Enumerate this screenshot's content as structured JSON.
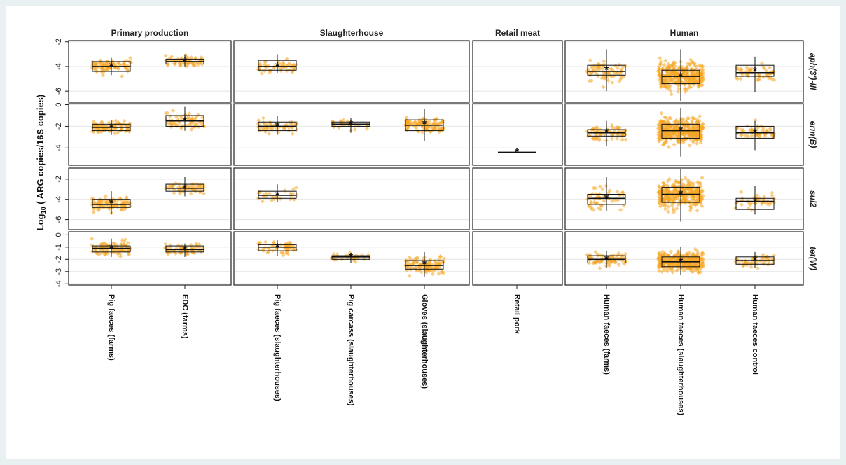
{
  "chart_data": {
    "type": "box",
    "facets": [
      "Primary production",
      "Slaughterhouse",
      "Retail meat",
      "Human"
    ],
    "genes": [
      {
        "label": "aph(3')-III",
        "ticks": [
          -2,
          -4,
          -6
        ],
        "tick_labels": [
          "-2",
          "-4",
          "-6"
        ],
        "ylim": [
          -1.9,
          -6.9
        ]
      },
      {
        "label": "erm(B)",
        "ticks": [
          0,
          -2,
          -4
        ],
        "tick_labels": [
          "0",
          "-2",
          "-4"
        ],
        "ylim": [
          0.1,
          -5.6
        ]
      },
      {
        "label": "sul2",
        "ticks": [
          -2,
          -4,
          -6
        ],
        "tick_labels": [
          "-2",
          "-4",
          "-6"
        ],
        "ylim": [
          -0.9,
          -7.0
        ]
      },
      {
        "label": "tet(W)",
        "ticks": [
          0,
          -1,
          -2,
          -3,
          -4
        ],
        "tick_labels": [
          "0",
          "-1",
          "-2",
          "-3",
          "-4"
        ],
        "ylim": [
          0.25,
          -4.1
        ]
      }
    ],
    "categories": [
      {
        "label": "Pig faeces (farms)",
        "facet": 0
      },
      {
        "label": "EDC (farms)",
        "facet": 0
      },
      {
        "label": "Pig faeces (slaughterhouses)",
        "facet": 1
      },
      {
        "label": "Pig carcass (slaughterhouses)",
        "facet": 1
      },
      {
        "label": "Gloves (slaughterhouses)",
        "facet": 1
      },
      {
        "label": "Retail pork",
        "facet": 2
      },
      {
        "label": "Human faeces (farms)",
        "facet": 3
      },
      {
        "label": "Human faeces (slaughterhouses)",
        "facet": 3
      },
      {
        "label": "Human faeces control",
        "facet": 3
      }
    ],
    "boxes": [
      {
        "gene": 0,
        "cat": 0,
        "q1": -4.4,
        "median": -4.0,
        "q3": -3.6,
        "mean": -4.0,
        "whisker_low": -4.7,
        "whisker_high": -3.3,
        "n": 90,
        "spread": 0.55
      },
      {
        "gene": 0,
        "cat": 1,
        "q1": -3.8,
        "median": -3.6,
        "q3": -3.4,
        "mean": -3.6,
        "whisker_low": -4.0,
        "whisker_high": -3.0,
        "n": 60,
        "spread": 0.4
      },
      {
        "gene": 0,
        "cat": 2,
        "q1": -4.3,
        "median": -4.0,
        "q3": -3.5,
        "mean": -4.0,
        "whisker_low": -4.5,
        "whisker_high": -3.0,
        "n": 50,
        "spread": 0.45
      },
      {
        "gene": 0,
        "cat": 6,
        "q1": -4.7,
        "median": -4.4,
        "q3": -3.9,
        "mean": -4.3,
        "whisker_low": -6.0,
        "whisker_high": -2.6,
        "n": 70,
        "spread": 0.8
      },
      {
        "gene": 0,
        "cat": 7,
        "q1": -5.4,
        "median": -4.8,
        "q3": -4.3,
        "mean": -4.8,
        "whisker_low": -6.8,
        "whisker_high": -2.6,
        "n": 340,
        "spread": 1.0
      },
      {
        "gene": 0,
        "cat": 8,
        "q1": -4.8,
        "median": -4.5,
        "q3": -3.9,
        "mean": -4.4,
        "whisker_low": -6.1,
        "whisker_high": -3.2,
        "n": 50,
        "spread": 0.6
      },
      {
        "gene": 1,
        "cat": 0,
        "q1": -2.4,
        "median": -2.1,
        "q3": -1.8,
        "mean": -2.1,
        "whisker_low": -2.8,
        "whisker_high": -1.4,
        "n": 90,
        "spread": 0.5
      },
      {
        "gene": 1,
        "cat": 1,
        "q1": -2.0,
        "median": -1.5,
        "q3": -1.0,
        "mean": -1.5,
        "whisker_low": -2.4,
        "whisker_high": -0.2,
        "n": 60,
        "spread": 0.6
      },
      {
        "gene": 1,
        "cat": 2,
        "q1": -2.4,
        "median": -2.0,
        "q3": -1.6,
        "mean": -2.0,
        "whisker_low": -2.8,
        "whisker_high": -1.0,
        "n": 50,
        "spread": 0.5
      },
      {
        "gene": 1,
        "cat": 3,
        "q1": -2.0,
        "median": -1.8,
        "q3": -1.6,
        "mean": -1.8,
        "whisker_low": -2.6,
        "whisker_high": -1.2,
        "n": 25,
        "spread": 0.45
      },
      {
        "gene": 1,
        "cat": 4,
        "q1": -2.4,
        "median": -1.9,
        "q3": -1.4,
        "mean": -1.8,
        "whisker_low": -3.4,
        "whisker_high": -0.4,
        "n": 110,
        "spread": 0.6
      },
      {
        "gene": 1,
        "cat": 5,
        "q1": -4.4,
        "median": -4.4,
        "q3": -4.4,
        "mean": -4.4,
        "whisker_low": -4.4,
        "whisker_high": -4.4,
        "n": 0,
        "spread": 0
      },
      {
        "gene": 1,
        "cat": 6,
        "q1": -2.9,
        "median": -2.6,
        "q3": -2.3,
        "mean": -2.6,
        "whisker_low": -3.8,
        "whisker_high": -1.5,
        "n": 70,
        "spread": 0.7
      },
      {
        "gene": 1,
        "cat": 7,
        "q1": -3.1,
        "median": -2.4,
        "q3": -1.8,
        "mean": -2.4,
        "whisker_low": -4.8,
        "whisker_high": -0.3,
        "n": 380,
        "spread": 1.0
      },
      {
        "gene": 1,
        "cat": 8,
        "q1": -3.1,
        "median": -2.6,
        "q3": -2.0,
        "mean": -2.6,
        "whisker_low": -4.2,
        "whisker_high": -1.5,
        "n": 50,
        "spread": 0.7
      },
      {
        "gene": 2,
        "cat": 0,
        "q1": -4.8,
        "median": -4.5,
        "q3": -4.0,
        "mean": -4.4,
        "whisker_low": -5.5,
        "whisker_high": -3.2,
        "n": 90,
        "spread": 0.6
      },
      {
        "gene": 2,
        "cat": 1,
        "q1": -3.2,
        "median": -2.9,
        "q3": -2.5,
        "mean": -2.9,
        "whisker_low": -3.7,
        "whisker_high": -1.8,
        "n": 60,
        "spread": 0.5
      },
      {
        "gene": 2,
        "cat": 2,
        "q1": -3.9,
        "median": -3.6,
        "q3": -3.2,
        "mean": -3.6,
        "whisker_low": -4.3,
        "whisker_high": -2.5,
        "n": 25,
        "spread": 0.6
      },
      {
        "gene": 2,
        "cat": 6,
        "q1": -4.5,
        "median": -3.9,
        "q3": -3.5,
        "mean": -3.9,
        "whisker_low": -5.2,
        "whisker_high": -1.8,
        "n": 50,
        "spread": 1.1
      },
      {
        "gene": 2,
        "cat": 7,
        "q1": -4.3,
        "median": -3.5,
        "q3": -2.8,
        "mean": -3.5,
        "whisker_low": -6.2,
        "whisker_high": -1.0,
        "n": 330,
        "spread": 1.3
      },
      {
        "gene": 2,
        "cat": 8,
        "q1": -5.0,
        "median": -4.2,
        "q3": -3.9,
        "mean": -4.3,
        "whisker_low": -5.5,
        "whisker_high": -2.7,
        "n": 40,
        "spread": 0.7
      },
      {
        "gene": 3,
        "cat": 0,
        "q1": -1.4,
        "median": -1.1,
        "q3": -0.9,
        "mean": -1.1,
        "whisker_low": -1.8,
        "whisker_high": -0.3,
        "n": 90,
        "spread": 0.5
      },
      {
        "gene": 3,
        "cat": 1,
        "q1": -1.4,
        "median": -1.2,
        "q3": -0.9,
        "mean": -1.2,
        "whisker_low": -1.8,
        "whisker_high": -0.7,
        "n": 60,
        "spread": 0.45
      },
      {
        "gene": 3,
        "cat": 2,
        "q1": -1.3,
        "median": -1.0,
        "q3": -0.8,
        "mean": -1.0,
        "whisker_low": -1.7,
        "whisker_high": -0.4,
        "n": 50,
        "spread": 0.5
      },
      {
        "gene": 3,
        "cat": 3,
        "q1": -2.0,
        "median": -1.8,
        "q3": -1.7,
        "mean": -1.8,
        "whisker_low": -2.3,
        "whisker_high": -1.5,
        "n": 25,
        "spread": 0.35
      },
      {
        "gene": 3,
        "cat": 4,
        "q1": -2.8,
        "median": -2.5,
        "q3": -2.1,
        "mean": -2.4,
        "whisker_low": -3.4,
        "whisker_high": -1.4,
        "n": 110,
        "spread": 0.65
      },
      {
        "gene": 3,
        "cat": 6,
        "q1": -2.3,
        "median": -2.0,
        "q3": -1.7,
        "mean": -2.0,
        "whisker_low": -2.7,
        "whisker_high": -1.3,
        "n": 70,
        "spread": 0.5
      },
      {
        "gene": 3,
        "cat": 7,
        "q1": -2.6,
        "median": -2.2,
        "q3": -1.8,
        "mean": -2.2,
        "whisker_low": -3.3,
        "whisker_high": -1.0,
        "n": 350,
        "spread": 0.7
      },
      {
        "gene": 3,
        "cat": 8,
        "q1": -2.4,
        "median": -2.1,
        "q3": -1.8,
        "mean": -2.1,
        "whisker_low": -2.7,
        "whisker_high": -1.4,
        "n": 50,
        "spread": 0.45
      }
    ],
    "colors": {
      "points": "#f5a623",
      "box": "#111111",
      "grid": "#e4e4e4",
      "panel_bg": "#ffffff",
      "page_bg": "#e8f0f2"
    },
    "grid": true,
    "ylabel_main": "Log",
    "ylabel_sub": "10",
    "ylabel_rest": " ( ARG copies/16S copies)"
  }
}
